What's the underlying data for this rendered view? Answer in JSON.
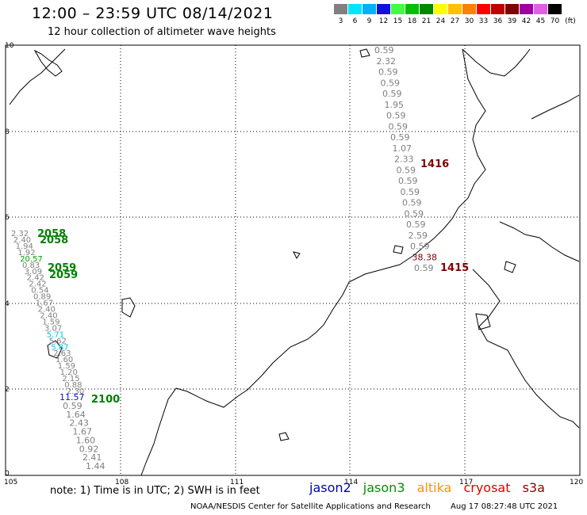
{
  "header": {
    "title": "12:00 – 23:59 UTC 08/14/2021",
    "subtitle": "12 hour collection of altimeter wave heights"
  },
  "legend": {
    "unit": "(ft)",
    "items": [
      {
        "label": "3",
        "color": "#808080"
      },
      {
        "label": "6",
        "color": "#00e5ff"
      },
      {
        "label": "9",
        "color": "#00b0ff"
      },
      {
        "label": "12",
        "color": "#1010e0"
      },
      {
        "label": "15",
        "color": "#40ff40"
      },
      {
        "label": "18",
        "color": "#00c000"
      },
      {
        "label": "21",
        "color": "#008800"
      },
      {
        "label": "24",
        "color": "#ffff00"
      },
      {
        "label": "27",
        "color": "#ffc000"
      },
      {
        "label": "30",
        "color": "#ff8000"
      },
      {
        "label": "33",
        "color": "#ff0000"
      },
      {
        "label": "36",
        "color": "#c00000"
      },
      {
        "label": "39",
        "color": "#800000"
      },
      {
        "label": "42",
        "color": "#a000a0"
      },
      {
        "label": "45",
        "color": "#e060e0"
      },
      {
        "label": "70",
        "color": "#000000"
      }
    ]
  },
  "axes": {
    "lon_ticks": [
      "105",
      "108",
      "111",
      "114",
      "117",
      "120"
    ],
    "lat_ticks": [
      "0",
      "2",
      "4",
      "6",
      "8",
      "10"
    ]
  },
  "tracks": [
    {
      "name": "track-east",
      "readings": [
        {
          "v": "0.59",
          "c": "#808080"
        },
        {
          "v": "2.32",
          "c": "#808080"
        },
        {
          "v": "0.59",
          "c": "#808080"
        },
        {
          "v": "0.59",
          "c": "#808080"
        },
        {
          "v": "0.59",
          "c": "#808080"
        },
        {
          "v": "1.95",
          "c": "#808080"
        },
        {
          "v": "0.59",
          "c": "#808080"
        },
        {
          "v": "0.59",
          "c": "#808080"
        },
        {
          "v": "0.59",
          "c": "#808080"
        },
        {
          "v": "1.07",
          "c": "#808080"
        },
        {
          "v": "2.33",
          "c": "#808080"
        },
        {
          "v": "0.59",
          "c": "#808080"
        },
        {
          "v": "0.59",
          "c": "#808080"
        },
        {
          "v": "0.59",
          "c": "#808080"
        },
        {
          "v": "0.59",
          "c": "#808080"
        },
        {
          "v": "0.59",
          "c": "#808080"
        },
        {
          "v": "0.59",
          "c": "#808080"
        },
        {
          "v": "2.59",
          "c": "#808080"
        },
        {
          "v": "0.59",
          "c": "#808080"
        },
        {
          "v": "38.38",
          "c": "#800000"
        },
        {
          "v": "0.59",
          "c": "#808080"
        }
      ]
    },
    {
      "name": "track-west",
      "readings": [
        {
          "v": "2.32",
          "c": "#808080"
        },
        {
          "v": "2.40",
          "c": "#808080"
        },
        {
          "v": "1.94",
          "c": "#808080"
        },
        {
          "v": "1.92",
          "c": "#808080"
        },
        {
          "v": "20.57",
          "c": "#00a000"
        },
        {
          "v": "0.83",
          "c": "#808080"
        },
        {
          "v": "3.09",
          "c": "#808080"
        },
        {
          "v": "2.42",
          "c": "#808080"
        },
        {
          "v": "2.42",
          "c": "#808080"
        },
        {
          "v": "0.54",
          "c": "#808080"
        },
        {
          "v": "0.89",
          "c": "#808080"
        },
        {
          "v": "1.67",
          "c": "#808080"
        },
        {
          "v": "2.40",
          "c": "#808080"
        },
        {
          "v": "2.40",
          "c": "#808080"
        },
        {
          "v": "1.59",
          "c": "#808080"
        },
        {
          "v": "3.07",
          "c": "#808080"
        },
        {
          "v": "5.71",
          "c": "#00c0e0"
        },
        {
          "v": "5.62",
          "c": "#808080"
        },
        {
          "v": "5.87",
          "c": "#00c0e0"
        },
        {
          "v": "2.63",
          "c": "#808080"
        },
        {
          "v": "1.60",
          "c": "#808080"
        },
        {
          "v": "1.59",
          "c": "#808080"
        },
        {
          "v": "1.20",
          "c": "#808080"
        },
        {
          "v": "2.15",
          "c": "#808080"
        },
        {
          "v": "0.88",
          "c": "#808080"
        },
        {
          "v": "2.30",
          "c": "#808080"
        }
      ]
    },
    {
      "name": "track-south",
      "readings": [
        {
          "v": "11.57",
          "c": "#1010c0"
        },
        {
          "v": "0.59",
          "c": "#808080"
        },
        {
          "v": "1.64",
          "c": "#808080"
        },
        {
          "v": "2.43",
          "c": "#808080"
        },
        {
          "v": "1.67",
          "c": "#808080"
        },
        {
          "v": "1.60",
          "c": "#808080"
        },
        {
          "v": "0.92",
          "c": "#808080"
        },
        {
          "v": "2.41",
          "c": "#808080"
        },
        {
          "v": "1.44",
          "c": "#808080"
        }
      ]
    }
  ],
  "pass_times": [
    {
      "text": "1416",
      "color": "#800000"
    },
    {
      "text": "1415",
      "color": "#800000"
    },
    {
      "text": "2058",
      "color": "#008000"
    },
    {
      "text": "2058",
      "color": "#008000"
    },
    {
      "text": "2059",
      "color": "#008000"
    },
    {
      "text": "2059",
      "color": "#008000"
    },
    {
      "text": "2100",
      "color": "#008000"
    }
  ],
  "footer": {
    "note": "note: 1) Time is in UTC; 2) SWH is in feet",
    "satellites": [
      {
        "name": "jason2",
        "color": "#0000c0"
      },
      {
        "name": "jason3",
        "color": "#009000"
      },
      {
        "name": "altika",
        "color": "#ff9000"
      },
      {
        "name": "cryosat",
        "color": "#e00000"
      },
      {
        "name": "s3a",
        "color": "#900000"
      }
    ],
    "credit": "NOAA/NESDIS Center for Satellite Applications and Research",
    "timestamp": "Aug 17 08:27:48 UTC 2021"
  }
}
